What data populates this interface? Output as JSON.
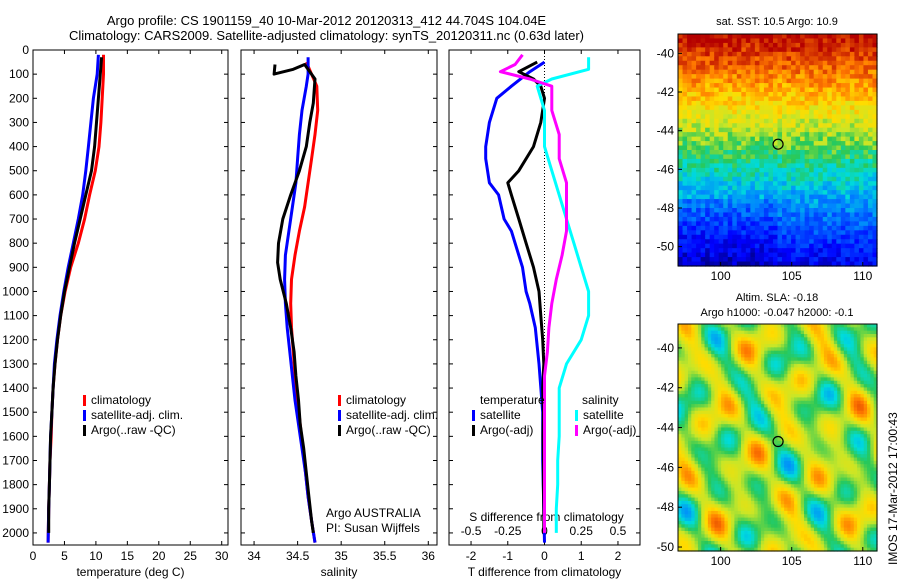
{
  "header": {
    "line1": "Argo profile: CS 1901159_40 10-Mar-2012 20120313_412 44.704S 104.04E",
    "line2": "Climatology: CARS2009. Satellite-adjusted climatology: synTS_20120311.nc (0.63d later)"
  },
  "side_label": "IMOS 17-Mar-2012 17:00:43",
  "colors": {
    "climatology": "#ff0000",
    "satellite": "#0000ff",
    "argo": "#000000",
    "salinity_satellite": "#00ffff",
    "salinity_argo": "#ff00ff"
  },
  "chart_data": [
    {
      "type": "line",
      "xlabel": "temperature (deg C)",
      "ylabel": "",
      "xlim": [
        0,
        31
      ],
      "ylim": [
        0,
        2050
      ],
      "y_reversed": true,
      "xticks": [
        "0",
        "5",
        "10",
        "15",
        "20",
        "25",
        "30"
      ],
      "yticks": [
        "0",
        "100",
        "200",
        "300",
        "400",
        "500",
        "600",
        "700",
        "800",
        "900",
        "1000",
        "1100",
        "1200",
        "1300",
        "1400",
        "1500",
        "1600",
        "1700",
        "1800",
        "1900",
        "2000"
      ],
      "legend": {
        "position": "bottom-right",
        "entries": [
          "climatology",
          "satellite-adj. clim.",
          "Argo(..raw -QC)"
        ]
      },
      "series": [
        {
          "name": "climatology",
          "color": "#ff0000",
          "points": [
            [
              11.2,
              20
            ],
            [
              11.2,
              100
            ],
            [
              11.0,
              200
            ],
            [
              10.8,
              300
            ],
            [
              10.5,
              400
            ],
            [
              9.9,
              500
            ],
            [
              9.0,
              600
            ],
            [
              8.2,
              700
            ],
            [
              7.2,
              800
            ],
            [
              6.0,
              900
            ],
            [
              5.1,
              1000
            ],
            [
              4.4,
              1100
            ],
            [
              3.9,
              1200
            ],
            [
              3.5,
              1300
            ],
            [
              3.2,
              1400
            ],
            [
              3.0,
              1500
            ],
            [
              2.9,
              1600
            ],
            [
              2.7,
              1700
            ],
            [
              2.6,
              1800
            ],
            [
              2.5,
              1900
            ],
            [
              2.4,
              2040
            ]
          ]
        },
        {
          "name": "satellite-adj. clim.",
          "color": "#0000ff",
          "points": [
            [
              10.4,
              20
            ],
            [
              10.2,
              100
            ],
            [
              9.6,
              200
            ],
            [
              9.2,
              300
            ],
            [
              8.8,
              400
            ],
            [
              8.4,
              500
            ],
            [
              7.9,
              600
            ],
            [
              7.2,
              700
            ],
            [
              6.4,
              800
            ],
            [
              5.6,
              900
            ],
            [
              4.9,
              1000
            ],
            [
              4.3,
              1100
            ],
            [
              3.8,
              1200
            ],
            [
              3.4,
              1300
            ],
            [
              3.2,
              1400
            ],
            [
              3.0,
              1500
            ],
            [
              2.8,
              1600
            ],
            [
              2.7,
              1700
            ],
            [
              2.6,
              1800
            ],
            [
              2.5,
              1900
            ],
            [
              2.4,
              2040
            ]
          ]
        },
        {
          "name": "Argo(..raw -QC)",
          "color": "#000000",
          "points": [
            [
              10.9,
              30
            ],
            [
              10.7,
              100
            ],
            [
              10.4,
              200
            ],
            [
              10.1,
              300
            ],
            [
              9.8,
              400
            ],
            [
              9.3,
              500
            ],
            [
              8.4,
              600
            ],
            [
              7.5,
              700
            ],
            [
              6.6,
              800
            ],
            [
              5.8,
              900
            ],
            [
              5.0,
              1000
            ],
            [
              4.4,
              1100
            ],
            [
              3.9,
              1200
            ],
            [
              3.5,
              1300
            ],
            [
              3.2,
              1400
            ],
            [
              3.0,
              1500
            ],
            [
              2.8,
              1600
            ],
            [
              2.7,
              1700
            ],
            [
              2.6,
              1800
            ],
            [
              2.5,
              1900
            ],
            [
              2.5,
              2000
            ]
          ]
        }
      ]
    },
    {
      "type": "line",
      "xlabel": "salinity",
      "ylabel": "",
      "xlim": [
        33.85,
        36.1
      ],
      "ylim": [
        0,
        2050
      ],
      "y_reversed": true,
      "xticks": [
        "34",
        "34.5",
        "35",
        "35.5",
        "36"
      ],
      "legend": {
        "position": "bottom-right",
        "entries": [
          "climatology",
          "satellite-adj. clim.",
          "Argo(..raw -QC)"
        ]
      },
      "annotation": [
        "Argo AUSTRALIA",
        "PI: Susan Wijffels"
      ],
      "series": [
        {
          "name": "climatology",
          "color": "#ff0000",
          "points": [
            [
              34.6,
              50
            ],
            [
              34.72,
              150
            ],
            [
              34.73,
              250
            ],
            [
              34.7,
              350
            ],
            [
              34.66,
              450
            ],
            [
              34.62,
              550
            ],
            [
              34.58,
              650
            ],
            [
              34.52,
              750
            ],
            [
              34.47,
              850
            ],
            [
              34.43,
              950
            ],
            [
              34.42,
              1050
            ],
            [
              34.43,
              1150
            ],
            [
              34.45,
              1250
            ],
            [
              34.47,
              1350
            ],
            [
              34.5,
              1450
            ],
            [
              34.53,
              1550
            ],
            [
              34.56,
              1650
            ],
            [
              34.59,
              1750
            ],
            [
              34.62,
              1850
            ],
            [
              34.66,
              1950
            ],
            [
              34.7,
              2040
            ]
          ]
        },
        {
          "name": "satellite-adj. clim.",
          "color": "#0000ff",
          "points": [
            [
              34.62,
              30
            ],
            [
              34.62,
              100
            ],
            [
              34.6,
              150
            ],
            [
              34.55,
              250
            ],
            [
              34.52,
              350
            ],
            [
              34.5,
              450
            ],
            [
              34.48,
              550
            ],
            [
              34.44,
              650
            ],
            [
              34.4,
              750
            ],
            [
              34.36,
              850
            ],
            [
              34.35,
              950
            ],
            [
              34.36,
              1050
            ],
            [
              34.38,
              1150
            ],
            [
              34.41,
              1250
            ],
            [
              34.44,
              1350
            ],
            [
              34.47,
              1450
            ],
            [
              34.51,
              1550
            ],
            [
              34.55,
              1650
            ],
            [
              34.59,
              1750
            ],
            [
              34.62,
              1850
            ],
            [
              34.66,
              1950
            ],
            [
              34.7,
              2040
            ]
          ]
        },
        {
          "name": "Argo(..raw -QC)",
          "color": "#000000",
          "points": [
            [
              34.24,
              60
            ],
            [
              34.23,
              100
            ],
            [
              34.45,
              80
            ],
            [
              34.58,
              60
            ],
            [
              34.7,
              120
            ],
            [
              34.68,
              220
            ],
            [
              34.64,
              300
            ],
            [
              34.6,
              400
            ],
            [
              34.52,
              500
            ],
            [
              34.42,
              600
            ],
            [
              34.33,
              700
            ],
            [
              34.28,
              800
            ],
            [
              34.27,
              880
            ],
            [
              34.3,
              950
            ],
            [
              34.37,
              1050
            ],
            [
              34.42,
              1150
            ],
            [
              34.46,
              1250
            ],
            [
              34.48,
              1350
            ],
            [
              34.51,
              1450
            ],
            [
              34.53,
              1550
            ],
            [
              34.57,
              1650
            ],
            [
              34.6,
              1750
            ],
            [
              34.63,
              1850
            ],
            [
              34.66,
              1950
            ],
            [
              34.68,
              2000
            ]
          ]
        }
      ]
    },
    {
      "type": "line",
      "xlabel": "T difference from climatology",
      "xlabel2": "S difference from climatology",
      "xlim": [
        -2.6,
        2.6
      ],
      "ylim": [
        0,
        2050
      ],
      "y_reversed": true,
      "xticks": [
        "-2",
        "-1",
        "0",
        "1",
        "2"
      ],
      "xticks2": [
        "-0.5",
        "-0.25",
        "0",
        "0.25",
        "0.5"
      ],
      "legend": {
        "position": "bottom",
        "groups": [
          "temperature",
          "salinity"
        ],
        "entries": [
          [
            "satellite",
            "Argo(-adj)"
          ],
          [
            "satellite",
            "Argo(-adj)"
          ]
        ]
      },
      "series": [
        {
          "name": "temperature satellite",
          "color": "#0000ff",
          "points": [
            [
              0.0,
              50
            ],
            [
              -0.4,
              90
            ],
            [
              -0.9,
              150
            ],
            [
              -1.3,
              200
            ],
            [
              -1.5,
              300
            ],
            [
              -1.6,
              400
            ],
            [
              -1.6,
              450
            ],
            [
              -1.5,
              550
            ],
            [
              -1.25,
              600
            ],
            [
              -1.1,
              700
            ],
            [
              -0.9,
              750
            ],
            [
              -0.8,
              800
            ],
            [
              -0.6,
              900
            ],
            [
              -0.5,
              1000
            ],
            [
              -0.4,
              1050
            ],
            [
              -0.25,
              1150
            ],
            [
              -0.15,
              1300
            ],
            [
              -0.05,
              1500
            ],
            [
              -0.05,
              1700
            ],
            [
              -0.02,
              1900
            ],
            [
              0.0,
              2040
            ]
          ]
        },
        {
          "name": "temperature Argo(-adj)",
          "color": "#000000",
          "points": [
            [
              -0.2,
              50
            ],
            [
              -0.7,
              90
            ],
            [
              -0.3,
              120
            ],
            [
              -0.1,
              150
            ],
            [
              0.0,
              200
            ],
            [
              -0.1,
              300
            ],
            [
              -0.3,
              400
            ],
            [
              -0.7,
              500
            ],
            [
              -1.0,
              550
            ],
            [
              -0.9,
              600
            ],
            [
              -0.7,
              700
            ],
            [
              -0.5,
              800
            ],
            [
              -0.3,
              900
            ],
            [
              -0.15,
              1000
            ],
            [
              -0.1,
              1100
            ],
            [
              -0.05,
              1200
            ],
            [
              -0.02,
              1300
            ],
            [
              -0.05,
              1400
            ],
            [
              -0.03,
              1500
            ],
            [
              -0.04,
              1600
            ],
            [
              -0.03,
              1700
            ],
            [
              -0.03,
              1800
            ],
            [
              -0.02,
              1900
            ],
            [
              -0.02,
              2000
            ]
          ]
        },
        {
          "name": "salinity satellite",
          "color": "#00ffff",
          "points": [
            [
              0.3,
              30
            ],
            [
              0.3,
              80
            ],
            [
              0.05,
              120
            ],
            [
              -0.05,
              150
            ],
            [
              0.0,
              250
            ],
            [
              0.0,
              400
            ],
            [
              0.05,
              500
            ],
            [
              0.1,
              600
            ],
            [
              0.15,
              700
            ],
            [
              0.2,
              800
            ],
            [
              0.25,
              900
            ],
            [
              0.3,
              1000
            ],
            [
              0.3,
              1100
            ],
            [
              0.25,
              1200
            ],
            [
              0.15,
              1300
            ],
            [
              0.1,
              1400
            ],
            [
              0.1,
              1500
            ],
            [
              0.1,
              1600
            ],
            [
              0.09,
              1700
            ],
            [
              0.09,
              1800
            ],
            [
              0.08,
              1900
            ],
            [
              0.08,
              2000
            ]
          ]
        },
        {
          "name": "salinity Argo(-adj)",
          "color": "#ff00ff",
          "points": [
            [
              -0.15,
              20
            ],
            [
              -0.2,
              60
            ],
            [
              -0.3,
              90
            ],
            [
              -0.1,
              120
            ],
            [
              0.05,
              150
            ],
            [
              0.05,
              250
            ],
            [
              0.1,
              350
            ],
            [
              0.1,
              450
            ],
            [
              0.15,
              550
            ],
            [
              0.15,
              650
            ],
            [
              0.15,
              750
            ],
            [
              0.12,
              850
            ],
            [
              0.08,
              950
            ],
            [
              0.05,
              1050
            ],
            [
              0.03,
              1150
            ],
            [
              0.02,
              1250
            ],
            [
              0.0,
              1350
            ],
            [
              0.0,
              1450
            ],
            [
              0.0,
              1550
            ],
            [
              0.0,
              1650
            ],
            [
              0.0,
              1750
            ],
            [
              0.0,
              1850
            ],
            [
              0.0,
              1950
            ],
            [
              0.0,
              2000
            ]
          ]
        }
      ]
    },
    {
      "type": "heatmap",
      "title": "sat. SST: 10.5 Argo: 10.9",
      "xlim": [
        97,
        111
      ],
      "ylim": [
        -51,
        -39
      ],
      "xticks": [
        "100",
        "105",
        "110"
      ],
      "yticks": [
        "-40",
        "-42",
        "-44",
        "-46",
        "-48",
        "-50"
      ],
      "marker": [
        104.04,
        -44.7
      ]
    },
    {
      "type": "heatmap",
      "title": "Altim. SLA: -0.18",
      "subtitle": "Argo h1000: -0.047 h2000: -0.1",
      "xlim": [
        97,
        111
      ],
      "ylim": [
        -50.2,
        -38.8
      ],
      "xticks": [
        "100",
        "105",
        "110"
      ],
      "yticks": [
        "-40",
        "-42",
        "-44",
        "-46",
        "-48",
        "-50"
      ],
      "marker": [
        104.04,
        -44.7
      ]
    }
  ]
}
